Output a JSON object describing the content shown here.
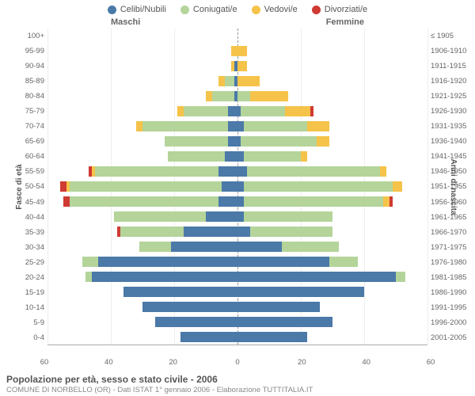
{
  "legend": [
    {
      "label": "Celibi/Nubili",
      "color": "#4b79a8"
    },
    {
      "label": "Coniugati/e",
      "color": "#b4d49a"
    },
    {
      "label": "Vedovi/e",
      "color": "#f5c34a"
    },
    {
      "label": "Divorziati/e",
      "color": "#cf3a32"
    }
  ],
  "genderLeft": "Maschi",
  "genderRight": "Femmine",
  "axisLeftTitle": "Fasce di età",
  "axisRightTitle": "Anni di nascita",
  "title": "Popolazione per età, sesso e stato civile - 2006",
  "subtitle": "COMUNE DI NORBELLO (OR) - Dati ISTAT 1° gennaio 2006 - Elaborazione TUTTITALIA.IT",
  "xTicks": [
    60,
    40,
    20,
    0,
    20,
    40,
    60
  ],
  "xMax": 60,
  "gridColor": "#eeeeee",
  "bgColor": "#ffffff",
  "barHeightPct": 72,
  "ageLabels": [
    "100+",
    "95-99",
    "90-94",
    "85-89",
    "80-84",
    "75-79",
    "70-74",
    "65-69",
    "60-64",
    "55-59",
    "50-54",
    "45-49",
    "40-44",
    "35-39",
    "30-34",
    "25-29",
    "20-24",
    "15-19",
    "10-14",
    "5-9",
    "0-4"
  ],
  "birthLabels": [
    "≤ 1905",
    "1906-1910",
    "1911-1915",
    "1916-1920",
    "1921-1925",
    "1926-1930",
    "1931-1935",
    "1936-1940",
    "1941-1945",
    "1946-1950",
    "1951-1955",
    "1956-1960",
    "1961-1965",
    "1966-1970",
    "1971-1975",
    "1976-1980",
    "1981-1985",
    "1986-1990",
    "1991-1995",
    "1996-2000",
    "2001-2005"
  ],
  "rows": [
    {
      "m": [
        0,
        0,
        0,
        0
      ],
      "f": [
        0,
        0,
        0,
        0
      ]
    },
    {
      "m": [
        0,
        0,
        2,
        0
      ],
      "f": [
        0,
        0,
        3,
        0
      ]
    },
    {
      "m": [
        1,
        0,
        1,
        0
      ],
      "f": [
        0,
        0,
        3,
        0
      ]
    },
    {
      "m": [
        1,
        3,
        2,
        0
      ],
      "f": [
        0,
        0,
        7,
        0
      ]
    },
    {
      "m": [
        1,
        7,
        2,
        0
      ],
      "f": [
        0,
        4,
        12,
        0
      ]
    },
    {
      "m": [
        3,
        14,
        2,
        0
      ],
      "f": [
        1,
        14,
        8,
        1
      ]
    },
    {
      "m": [
        3,
        27,
        2,
        0
      ],
      "f": [
        2,
        20,
        7,
        0
      ]
    },
    {
      "m": [
        3,
        20,
        0,
        0
      ],
      "f": [
        1,
        24,
        4,
        0
      ]
    },
    {
      "m": [
        4,
        18,
        0,
        0
      ],
      "f": [
        2,
        18,
        2,
        0
      ]
    },
    {
      "m": [
        6,
        39,
        1,
        1
      ],
      "f": [
        3,
        42,
        2,
        0
      ]
    },
    {
      "m": [
        5,
        48,
        1,
        2
      ],
      "f": [
        2,
        47,
        3,
        0
      ]
    },
    {
      "m": [
        6,
        47,
        0,
        2
      ],
      "f": [
        2,
        44,
        2,
        1
      ]
    },
    {
      "m": [
        10,
        29,
        0,
        0
      ],
      "f": [
        2,
        28,
        0,
        0
      ]
    },
    {
      "m": [
        17,
        20,
        0,
        1
      ],
      "f": [
        4,
        26,
        0,
        0
      ]
    },
    {
      "m": [
        21,
        10,
        0,
        0
      ],
      "f": [
        14,
        18,
        0,
        0
      ]
    },
    {
      "m": [
        44,
        5,
        0,
        0
      ],
      "f": [
        29,
        9,
        0,
        0
      ]
    },
    {
      "m": [
        46,
        2,
        0,
        0
      ],
      "f": [
        50,
        3,
        0,
        0
      ]
    },
    {
      "m": [
        36,
        0,
        0,
        0
      ],
      "f": [
        40,
        0,
        0,
        0
      ]
    },
    {
      "m": [
        30,
        0,
        0,
        0
      ],
      "f": [
        26,
        0,
        0,
        0
      ]
    },
    {
      "m": [
        26,
        0,
        0,
        0
      ],
      "f": [
        30,
        0,
        0,
        0
      ]
    },
    {
      "m": [
        18,
        0,
        0,
        0
      ],
      "f": [
        22,
        0,
        0,
        0
      ]
    }
  ]
}
